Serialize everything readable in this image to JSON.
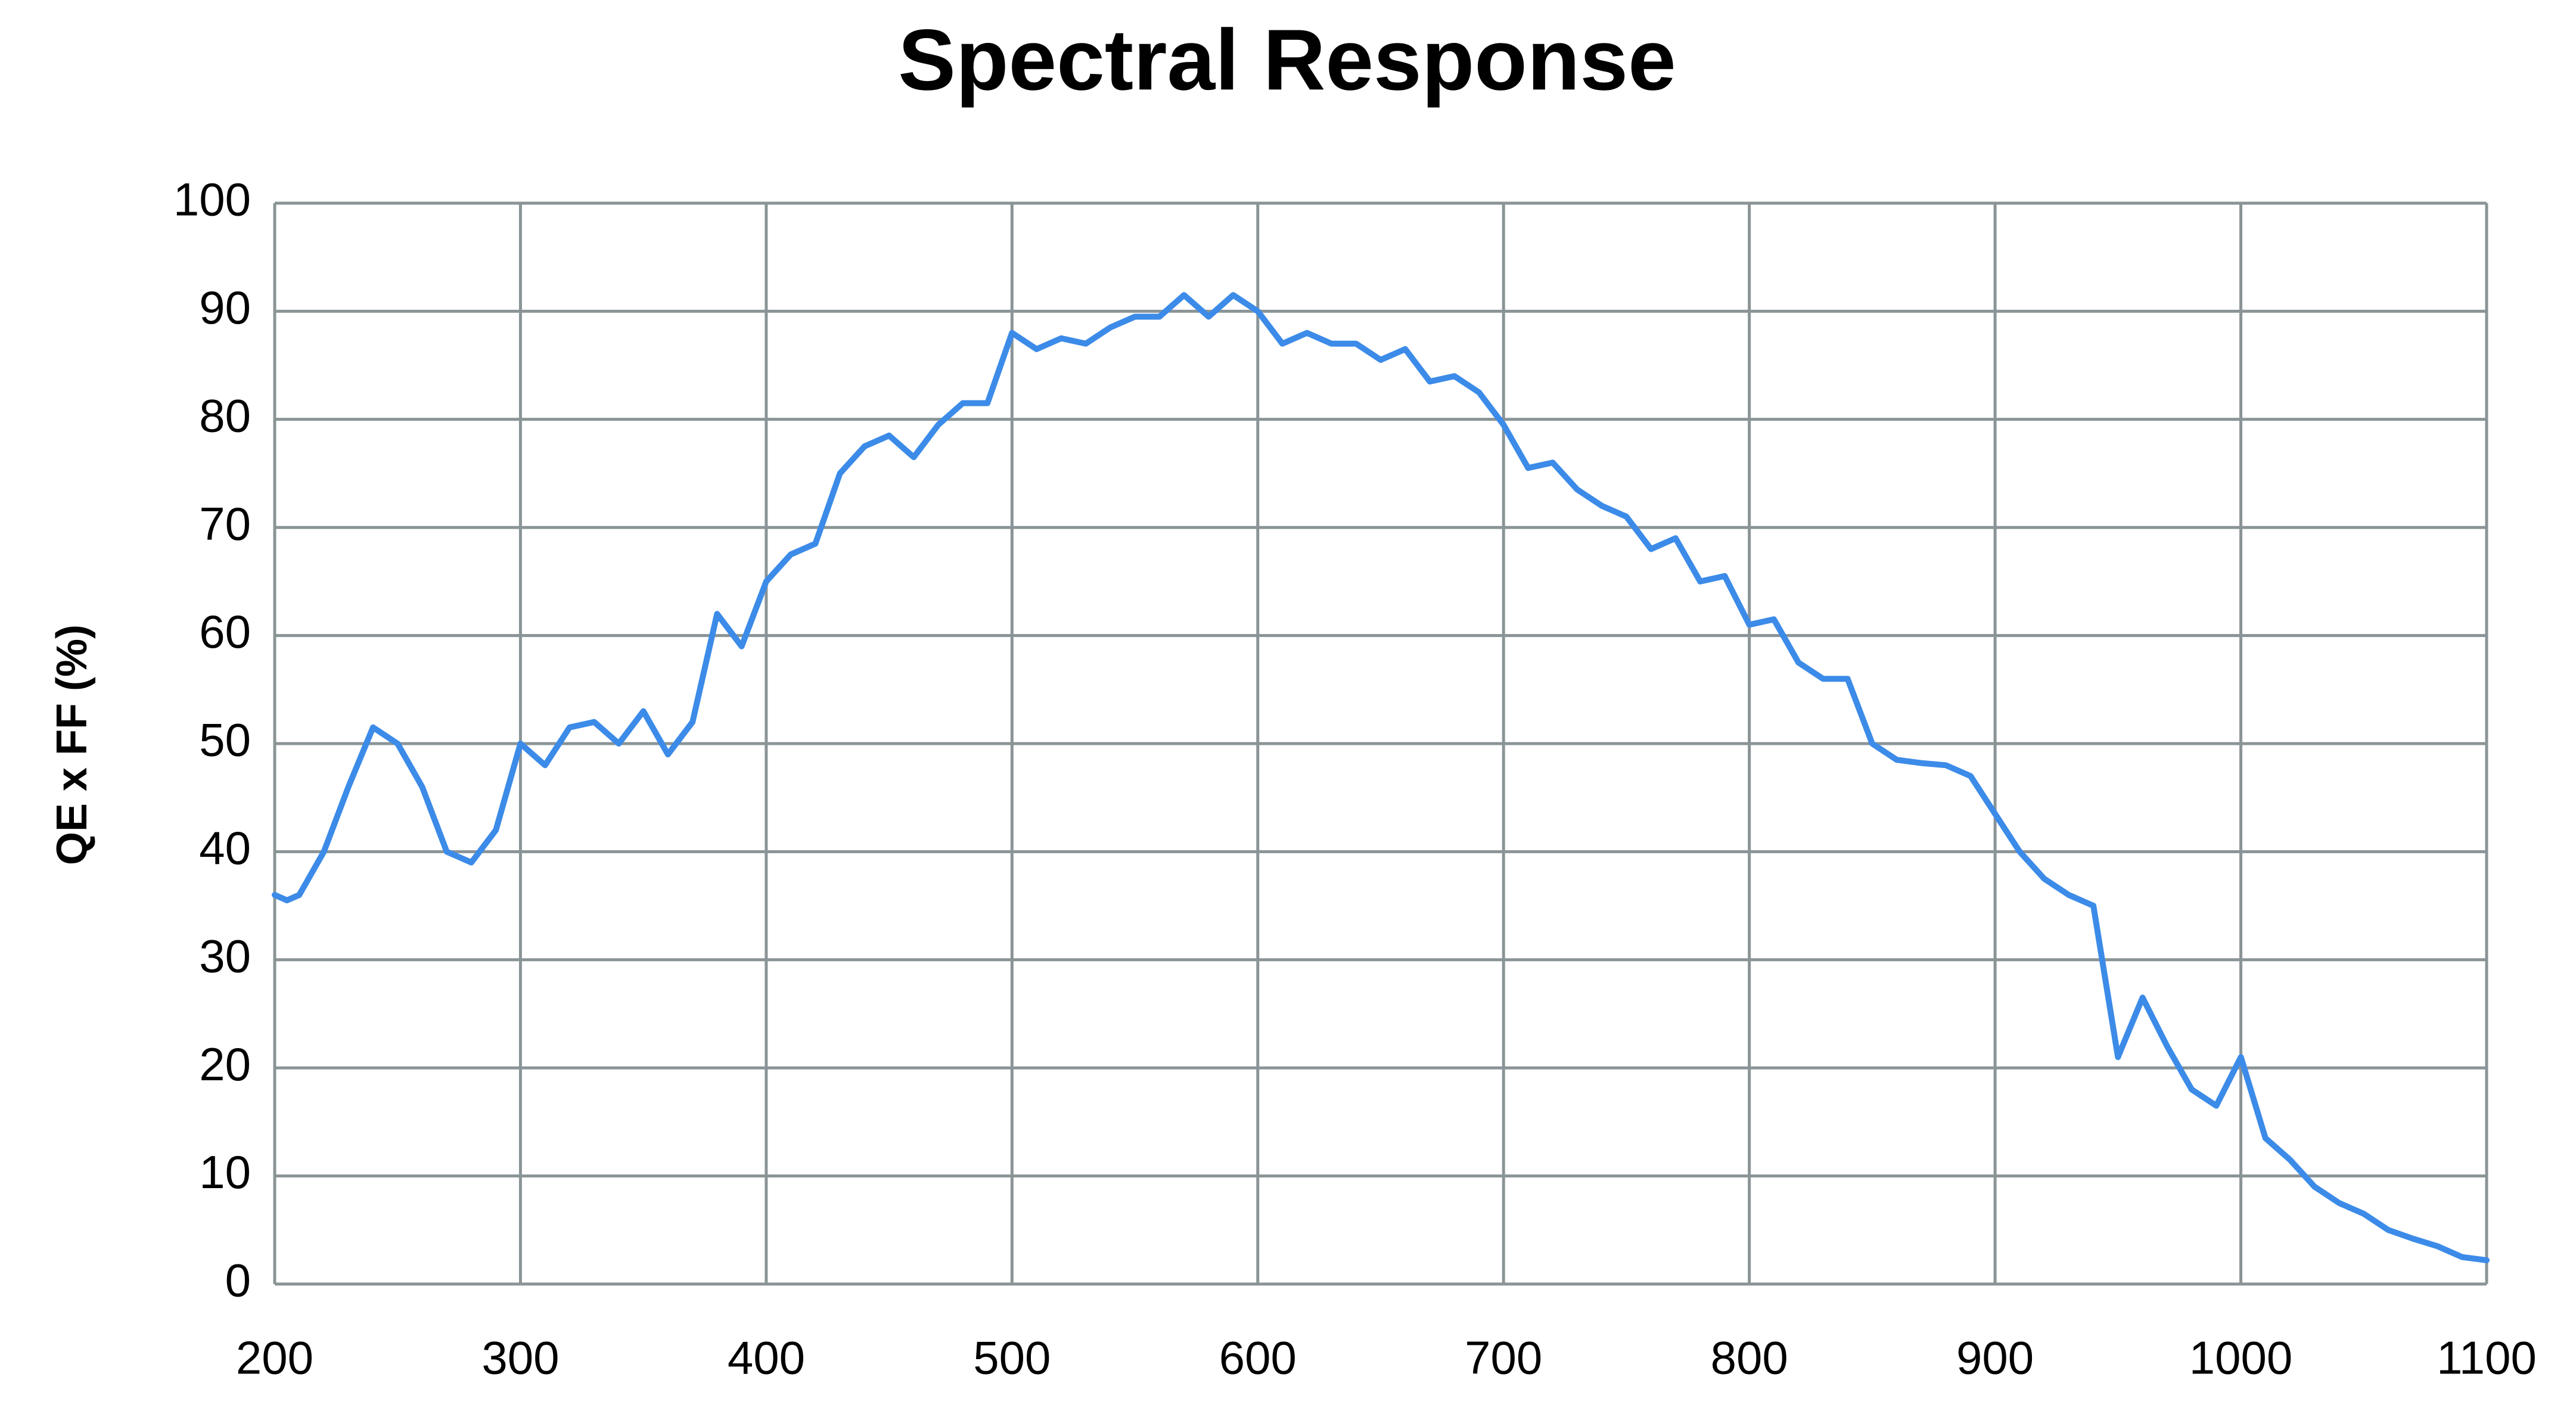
{
  "chart_data": {
    "type": "line",
    "title": "Spectral Response",
    "y_label": "QE x FF (%)",
    "x": [
      200,
      205,
      210,
      220,
      230,
      240,
      250,
      260,
      270,
      280,
      290,
      300,
      310,
      320,
      330,
      340,
      350,
      360,
      370,
      380,
      390,
      400,
      410,
      420,
      430,
      440,
      450,
      460,
      470,
      480,
      490,
      500,
      510,
      520,
      530,
      540,
      550,
      560,
      570,
      580,
      590,
      600,
      610,
      620,
      630,
      640,
      650,
      660,
      670,
      680,
      690,
      700,
      710,
      720,
      730,
      740,
      750,
      760,
      770,
      780,
      790,
      800,
      810,
      820,
      830,
      840,
      850,
      860,
      870,
      880,
      890,
      900,
      910,
      920,
      930,
      940,
      950,
      960,
      970,
      980,
      990,
      1000,
      1010,
      1020,
      1030,
      1040,
      1050,
      1060,
      1070,
      1080,
      1090,
      1100
    ],
    "values": [
      36,
      35.5,
      36,
      40,
      46,
      51.5,
      50,
      46,
      40,
      39,
      42,
      50,
      48,
      51.5,
      52,
      50,
      53,
      49,
      52,
      62,
      59,
      65,
      67.5,
      68.5,
      75,
      77.5,
      78.5,
      76.5,
      79.5,
      81.5,
      81.5,
      88,
      86.5,
      87.5,
      87,
      88.5,
      89.5,
      89.5,
      91.5,
      89.5,
      91.5,
      90,
      87,
      88,
      87,
      87,
      85.5,
      86.5,
      83.5,
      84,
      82.5,
      79.5,
      75.5,
      76,
      73.5,
      72,
      71,
      68,
      69,
      65,
      65.5,
      61,
      61.5,
      57.5,
      56,
      56,
      50,
      48.5,
      48.2,
      48,
      47,
      43.5,
      40,
      37.5,
      36,
      35,
      21,
      26.5,
      22,
      18,
      16.5,
      21,
      13.5,
      11.5,
      9,
      7.5,
      6.5,
      5,
      4.2,
      3.5,
      2.5,
      2.2
    ],
    "color": "#3c8be8",
    "xlim": [
      200,
      1100
    ],
    "xticks": [
      200,
      300,
      400,
      500,
      600,
      700,
      800,
      900,
      1000,
      1100
    ],
    "ylim": [
      0,
      100
    ],
    "yticks": [
      0,
      10,
      20,
      30,
      40,
      50,
      60,
      70,
      80,
      90,
      100
    ],
    "grid": true
  }
}
